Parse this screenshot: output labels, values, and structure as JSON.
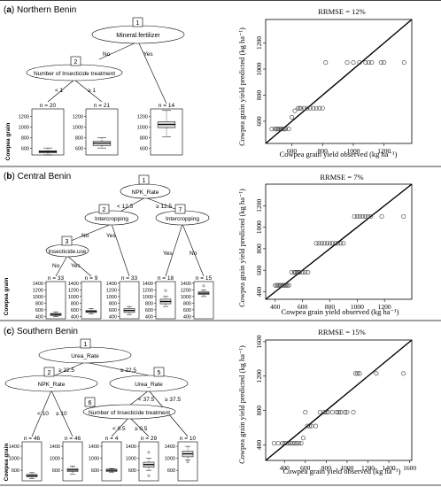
{
  "panels": [
    {
      "id": "a",
      "title": "(a) Northern Benin",
      "title_letter": "a",
      "title_region": "Northern Benin",
      "tree": {
        "nodes": [
          {
            "num": "1",
            "label": "Mineral.fertilizer"
          },
          {
            "num": "2",
            "label": "Number of Insecticide treatment"
          }
        ],
        "edge_labels": [
          "No",
          "Yes",
          "< 1",
          "≥ 1"
        ],
        "leaves": [
          {
            "n": "n = 20",
            "q1": 520,
            "median": 540,
            "q3": 560,
            "wlo": 480,
            "whi": 610,
            "outliers": []
          },
          {
            "n": "n = 21",
            "q1": 655,
            "median": 700,
            "q3": 735,
            "wlo": 610,
            "whi": 800,
            "outliers": []
          },
          {
            "n": "n = 14",
            "q1": 990,
            "median": 1050,
            "q3": 1100,
            "wlo": 820,
            "whi": 1310,
            "outliers": []
          }
        ],
        "yticks": [
          "1200",
          "1000",
          "800",
          "600"
        ],
        "ylim": [
          480,
          1340
        ],
        "ylabel": "Cowpea grain"
      },
      "chart_data": {
        "type": "scatter",
        "title": "RRMSE = 12%",
        "xlabel": "Cowpea grain yield observed (kg ha⁻¹)",
        "ylabel": "Cowpea grain yield predicted (kg ha⁻¹)",
        "xlim": [
          430,
          1380
        ],
        "ylim": [
          430,
          1380
        ],
        "xticks": [
          600,
          800,
          1000,
          1200
        ],
        "yticks": [
          600,
          800,
          1000,
          1200
        ],
        "x": [
          470,
          490,
          500,
          510,
          520,
          530,
          540,
          550,
          560,
          580,
          600,
          620,
          640,
          650,
          660,
          680,
          700,
          720,
          740,
          760,
          780,
          800,
          820,
          960,
          1000,
          1040,
          1080,
          1100,
          1120,
          1180,
          1200,
          1330
        ],
        "y": [
          540,
          540,
          540,
          540,
          540,
          540,
          540,
          540,
          540,
          540,
          630,
          680,
          700,
          700,
          700,
          700,
          700,
          700,
          700,
          700,
          700,
          700,
          1050,
          1050,
          1050,
          1050,
          1050,
          1050,
          1050,
          1050,
          1050,
          1050
        ]
      }
    },
    {
      "id": "b",
      "title": "(b) Central Benin",
      "title_letter": "b",
      "title_region": "Central Benin",
      "tree": {
        "nodes": [
          {
            "num": "1",
            "label": "NPK_Rate"
          },
          {
            "num": "2",
            "label": "Intercropping"
          },
          {
            "num": "3",
            "label": "Insecticide.use"
          },
          {
            "num": "7",
            "label": "Intercropping"
          }
        ],
        "edge_labels": [
          "< 12.5",
          "≥ 12.5",
          "No",
          "Yes",
          "No",
          "Yes",
          "Yes",
          "No"
        ],
        "leaves": [
          {
            "n": "n = 33",
            "q1": 430,
            "median": 460,
            "q3": 490,
            "wlo": 400,
            "whi": 540,
            "outliers": []
          },
          {
            "n": "n = 9",
            "q1": 520,
            "median": 550,
            "q3": 580,
            "wlo": 480,
            "whi": 640,
            "outliers": []
          },
          {
            "n": "n = 33",
            "q1": 520,
            "median": 580,
            "q3": 640,
            "wlo": 460,
            "whi": 700,
            "outliers": []
          },
          {
            "n": "n = 18",
            "q1": 780,
            "median": 850,
            "q3": 920,
            "wlo": 700,
            "whi": 1000,
            "outliers": [
              1180
            ]
          },
          {
            "n": "n = 15",
            "q1": 1060,
            "median": 1100,
            "q3": 1140,
            "wlo": 1000,
            "whi": 1200,
            "outliers": [
              1320
            ]
          }
        ],
        "yticks": [
          "1400",
          "1200",
          "1000",
          "800",
          "600",
          "400"
        ],
        "ylim": [
          330,
          1450
        ],
        "ylabel": "Cowpea grain"
      },
      "chart_data": {
        "type": "scatter",
        "title": "RRMSE = 7%",
        "xlabel": "Cowpea grain yield observed (kg ha⁻¹)",
        "ylabel": "Cowpea grain yield predicted (kg ha⁻¹)",
        "xlim": [
          330,
          1400
        ],
        "ylim": [
          330,
          1400
        ],
        "xticks": [
          400,
          600,
          800,
          1000,
          1200
        ],
        "yticks": [
          400,
          600,
          800,
          1000,
          1200
        ],
        "x": [
          400,
          410,
          420,
          430,
          440,
          450,
          460,
          470,
          480,
          490,
          500,
          520,
          540,
          550,
          560,
          570,
          580,
          600,
          620,
          640,
          700,
          720,
          740,
          760,
          780,
          800,
          820,
          840,
          860,
          880,
          900,
          980,
          1000,
          1020,
          1040,
          1060,
          1080,
          1100,
          1180,
          1340
        ],
        "y": [
          460,
          460,
          460,
          460,
          460,
          460,
          460,
          460,
          460,
          460,
          460,
          580,
          580,
          580,
          580,
          580,
          580,
          580,
          580,
          580,
          850,
          850,
          850,
          850,
          850,
          850,
          850,
          850,
          850,
          850,
          850,
          1100,
          1100,
          1100,
          1100,
          1100,
          1100,
          1100,
          1100,
          1100
        ]
      }
    },
    {
      "id": "c",
      "title": "(c) Southern Benin",
      "title_letter": "c",
      "title_region": "Southern Benin",
      "tree": {
        "nodes": [
          {
            "num": "1",
            "label": "Urea_Rate"
          },
          {
            "num": "2",
            "label": "NPK_Rate"
          },
          {
            "num": "5",
            "label": "Urea_Rate"
          },
          {
            "num": "6",
            "label": "Number of Insecticide treatment"
          }
        ],
        "edge_labels": [
          "≥ 22.5",
          "≥ 22.5",
          "< 10",
          "≥ 10",
          "< 37.5",
          "≥ 37.5",
          "< 0.5",
          "≥ 0.5"
        ],
        "leaves": [
          {
            "n": "n = 46",
            "q1": 380,
            "median": 420,
            "q3": 460,
            "wlo": 330,
            "whi": 520,
            "outliers": []
          },
          {
            "n": "n = 46",
            "q1": 560,
            "median": 610,
            "q3": 660,
            "wlo": 480,
            "whi": 740,
            "outliers": []
          },
          {
            "n": "n = 4",
            "q1": 560,
            "median": 600,
            "q3": 640,
            "wlo": 540,
            "whi": 660,
            "outliers": []
          },
          {
            "n": "n = 29",
            "q1": 700,
            "median": 790,
            "q3": 870,
            "wlo": 600,
            "whi": 1000,
            "outliers": [
              1200,
              420
            ]
          },
          {
            "n": "n = 10",
            "q1": 1050,
            "median": 1150,
            "q3": 1240,
            "wlo": 950,
            "whi": 1400,
            "outliers": [
              880
            ]
          }
        ],
        "yticks": [
          "1400",
          "1000",
          "600"
        ],
        "ylim": [
          250,
          1550
        ],
        "ylabel": "Cowpea grain"
      },
      "chart_data": {
        "type": "scatter",
        "title": "RRMSE = 15%",
        "xlabel": "Cowpea grain yield observed (kg ha⁻¹)",
        "ylabel": "Cowpea grain yield predicted (kg ha⁻¹)",
        "xlim": [
          220,
          1620
        ],
        "ylim": [
          220,
          1620
        ],
        "xticks": [
          400,
          600,
          800,
          1000,
          1200,
          1400,
          1600
        ],
        "yticks": [
          400,
          800,
          1200,
          1600
        ],
        "x": [
          300,
          340,
          380,
          400,
          420,
          440,
          460,
          480,
          500,
          520,
          540,
          560,
          580,
          600,
          620,
          640,
          660,
          700,
          740,
          780,
          800,
          820,
          860,
          900,
          920,
          940,
          980,
          1000,
          1060,
          1080,
          1100,
          1120,
          1280,
          1540
        ],
        "y": [
          420,
          420,
          420,
          420,
          420,
          420,
          420,
          420,
          420,
          420,
          420,
          420,
          480,
          780,
          620,
          620,
          620,
          620,
          780,
          780,
          780,
          780,
          780,
          780,
          780,
          780,
          780,
          780,
          780,
          1230,
          1230,
          1230,
          1230,
          1230
        ]
      }
    }
  ]
}
